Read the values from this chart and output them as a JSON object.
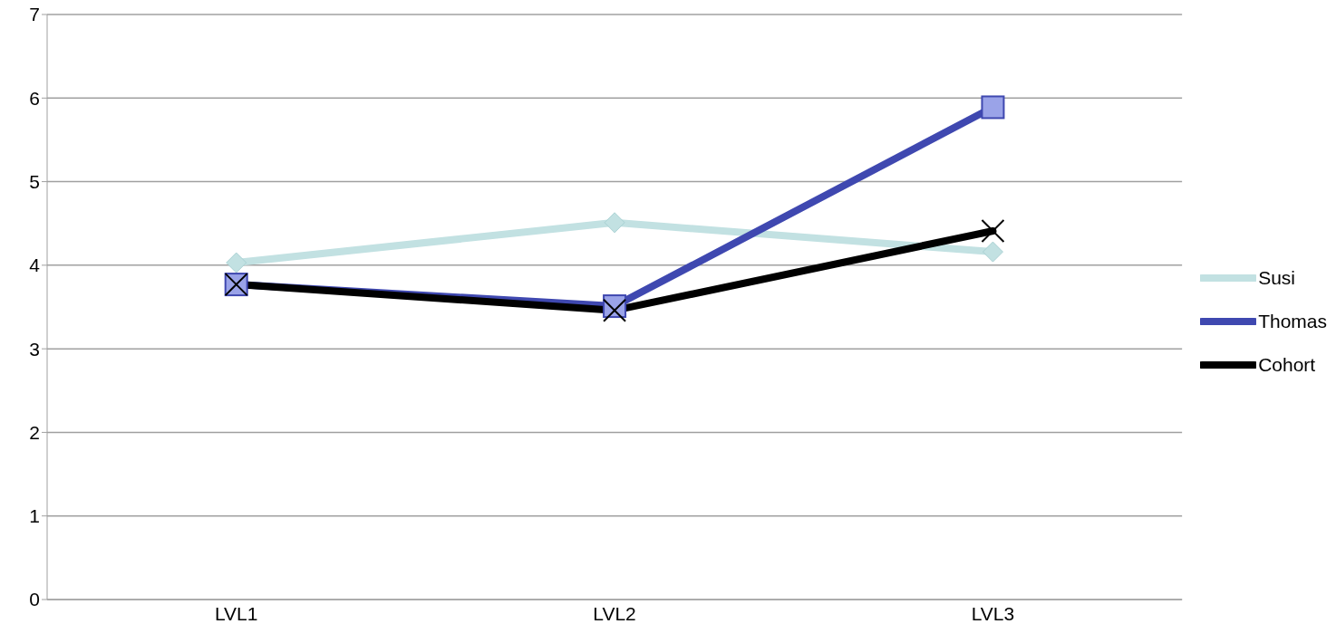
{
  "chart_data": {
    "type": "line",
    "categories": [
      "LVL1",
      "LVL2",
      "LVL3"
    ],
    "series": [
      {
        "name": "Susi",
        "color": "#c2e1e2",
        "values": [
          4.03,
          4.51,
          4.16
        ],
        "marker": "diamond"
      },
      {
        "name": "Thomas",
        "color": "#3f48b0",
        "values": [
          3.77,
          3.51,
          5.89
        ],
        "marker": "square"
      },
      {
        "name": "Cohort",
        "color": "#000000",
        "values": [
          3.77,
          3.46,
          4.41
        ],
        "marker": "cross"
      }
    ],
    "ylim": [
      0,
      7
    ],
    "yticks": [
      0,
      1,
      2,
      3,
      4,
      5,
      6,
      7
    ],
    "grid": "y",
    "legend": "right",
    "line_style": "solid"
  }
}
